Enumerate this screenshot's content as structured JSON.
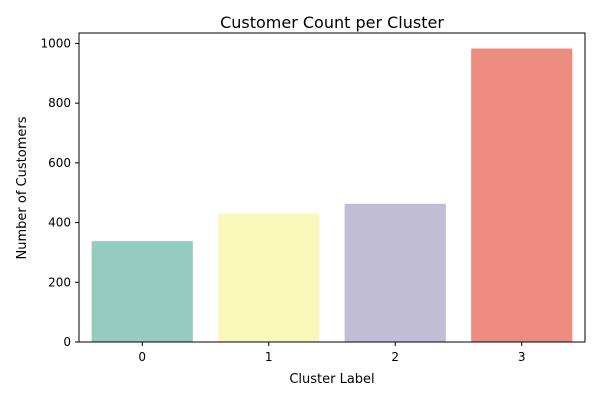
{
  "chart_data": {
    "type": "bar",
    "title": "Customer Count per Cluster",
    "xlabel": "Cluster Label",
    "ylabel": "Number of Customers",
    "categories": [
      "0",
      "1",
      "2",
      "3"
    ],
    "values": [
      338,
      430,
      463,
      983
    ],
    "colors": [
      "#96cbc0",
      "#f8f8bb",
      "#c1bdd7",
      "#ec8d80"
    ],
    "ylim": [
      0,
      1035
    ],
    "yticks": [
      0,
      200,
      400,
      600,
      800,
      1000
    ],
    "grid": false,
    "legend": "none"
  }
}
